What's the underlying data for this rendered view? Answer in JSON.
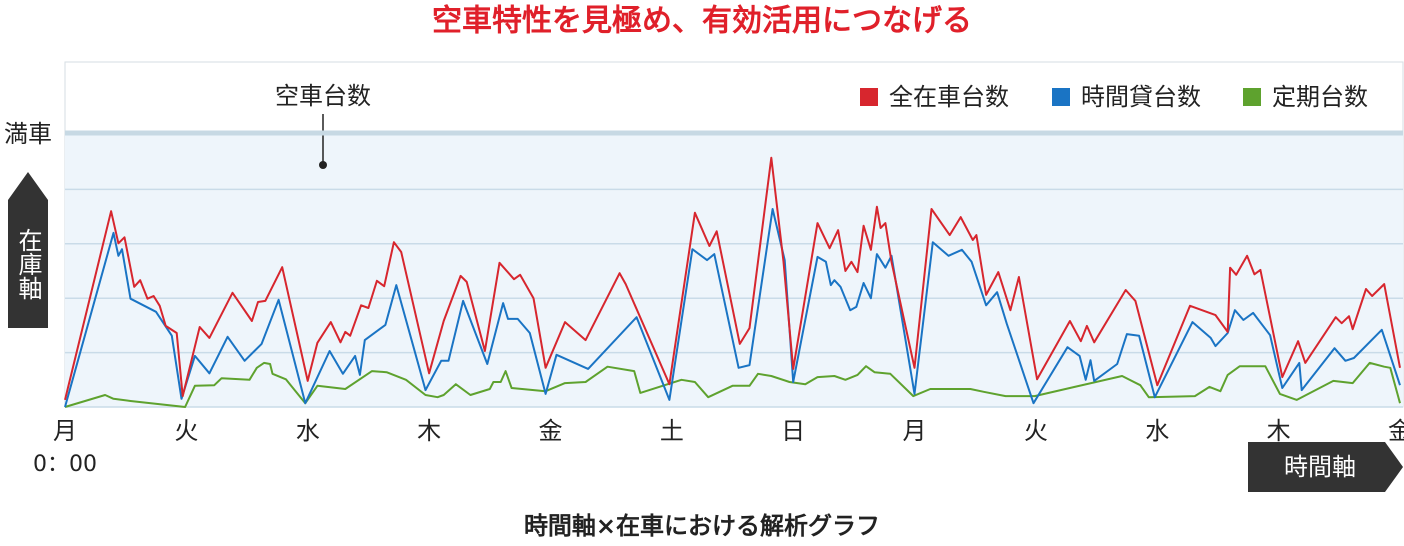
{
  "chart_data": {
    "type": "line",
    "title": "空車特性を見極め、有効活用につなげる",
    "caption": "時間軸×在車における解析グラフ",
    "annotation": "空車台数",
    "y_axis_label": "在庫軸",
    "x_axis_label": "時間軸",
    "x_start_label": "0：00",
    "full_line": {
      "value": 5,
      "label": "満車"
    },
    "xlim": [
      0,
      11
    ],
    "ylim": [
      0,
      5
    ],
    "xticks": [
      {
        "value": 0,
        "label": "月"
      },
      {
        "value": 1,
        "label": "火"
      },
      {
        "value": 2,
        "label": "水"
      },
      {
        "value": 3,
        "label": "木"
      },
      {
        "value": 4,
        "label": "金"
      },
      {
        "value": 5,
        "label": "土"
      },
      {
        "value": 6,
        "label": "日"
      },
      {
        "value": 7,
        "label": "月"
      },
      {
        "value": 8,
        "label": "火"
      },
      {
        "value": 9,
        "label": "水"
      },
      {
        "value": 10,
        "label": "木"
      },
      {
        "value": 11,
        "label": "金"
      }
    ],
    "gridlines": [
      1,
      2,
      3,
      4
    ],
    "grid": true,
    "legend": "top-right",
    "series": [
      {
        "name": "全在車台数",
        "color": "#d7262e",
        "x": [
          0,
          0.38,
          0.44,
          0.49,
          0.57,
          0.62,
          0.68,
          0.73,
          0.78,
          0.83,
          0.92,
          0.97,
          1.11,
          1.19,
          1.38,
          1.54,
          1.59,
          1.65,
          1.79,
          2.0,
          2.08,
          2.19,
          2.27,
          2.31,
          2.35,
          2.44,
          2.5,
          2.57,
          2.63,
          2.71,
          2.77,
          3.0,
          3.12,
          3.26,
          3.31,
          3.46,
          3.58,
          3.7,
          3.75,
          3.86,
          3.96,
          4.12,
          4.29,
          4.57,
          4.62,
          4.98,
          5.19,
          5.31,
          5.37,
          5.56,
          5.64,
          5.82,
          5.92,
          6.0,
          6.2,
          6.3,
          6.37,
          6.43,
          6.48,
          6.53,
          6.58,
          6.64,
          6.69,
          6.72,
          6.76,
          6.81,
          7.0,
          7.14,
          7.29,
          7.38,
          7.48,
          7.51,
          7.59,
          7.69,
          7.79,
          7.86,
          8.01,
          8.28,
          8.37,
          8.42,
          8.48,
          8.74,
          8.82,
          9.0,
          9.27,
          9.48,
          9.58,
          9.6,
          9.65,
          9.74,
          9.8,
          9.85,
          10.03,
          10.16,
          10.22,
          10.47,
          10.52,
          10.58,
          10.61,
          10.72,
          10.77,
          10.87,
          11.0
        ],
        "values": [
          0.13,
          3.6,
          3.01,
          3.12,
          2.21,
          2.33,
          1.99,
          2.04,
          1.86,
          1.49,
          1.36,
          0.2,
          1.47,
          1.27,
          2.1,
          1.58,
          1.93,
          1.95,
          2.57,
          0.48,
          1.18,
          1.56,
          1.19,
          1.38,
          1.31,
          1.87,
          1.82,
          2.32,
          2.22,
          3.03,
          2.85,
          0.62,
          1.58,
          2.41,
          2.3,
          1.03,
          2.65,
          2.35,
          2.43,
          2.0,
          0.72,
          1.56,
          1.23,
          2.46,
          2.26,
          0.42,
          3.57,
          2.96,
          3.23,
          1.16,
          1.45,
          4.58,
          2.67,
          0.7,
          3.38,
          2.92,
          3.25,
          2.5,
          2.67,
          2.48,
          3.33,
          2.89,
          3.68,
          3.29,
          3.38,
          2.67,
          0.72,
          3.64,
          3.16,
          3.49,
          3.07,
          3.16,
          2.06,
          2.48,
          1.78,
          2.39,
          0.51,
          1.58,
          1.21,
          1.49,
          1.19,
          2.15,
          1.95,
          0.4,
          1.86,
          1.69,
          1.38,
          2.56,
          2.43,
          2.78,
          2.44,
          2.52,
          0.55,
          1.21,
          0.81,
          1.65,
          1.54,
          1.67,
          1.43,
          2.17,
          2.04,
          2.26,
          0.72
        ]
      },
      {
        "name": "時間貸台数",
        "color": "#1a74c4",
        "x": [
          0,
          0.4,
          0.44,
          0.47,
          0.54,
          0.75,
          0.88,
          0.96,
          1.07,
          1.19,
          1.34,
          1.48,
          1.62,
          1.76,
          1.98,
          2.18,
          2.29,
          2.39,
          2.43,
          2.47,
          2.64,
          2.73,
          2.97,
          3.1,
          3.16,
          3.28,
          3.48,
          3.61,
          3.65,
          3.73,
          3.83,
          3.96,
          4.05,
          4.31,
          4.71,
          4.98,
          5.17,
          5.29,
          5.35,
          5.55,
          5.64,
          5.83,
          5.93,
          6.0,
          6.2,
          6.27,
          6.31,
          6.34,
          6.39,
          6.47,
          6.52,
          6.58,
          6.64,
          6.69,
          6.76,
          6.81,
          7.0,
          7.15,
          7.28,
          7.39,
          7.47,
          7.59,
          7.68,
          7.76,
          7.98,
          8.26,
          8.36,
          8.41,
          8.45,
          8.48,
          8.67,
          8.75,
          8.85,
          8.98,
          9.29,
          9.44,
          9.48,
          9.58,
          9.64,
          9.71,
          9.79,
          9.93,
          10.03,
          10.17,
          10.19,
          10.46,
          10.55,
          10.62,
          10.85,
          11.0
        ],
        "values": [
          0,
          3.2,
          2.78,
          2.9,
          1.99,
          1.75,
          1.31,
          0.15,
          0.94,
          0.62,
          1.29,
          0.85,
          1.16,
          1.97,
          0.07,
          1.03,
          0.61,
          0.94,
          0.59,
          1.23,
          1.51,
          2.24,
          0.31,
          0.85,
          0.85,
          1.95,
          0.79,
          1.91,
          1.62,
          1.62,
          1.36,
          0.24,
          0.96,
          0.7,
          1.65,
          0.13,
          2.9,
          2.7,
          2.81,
          0.72,
          0.77,
          3.64,
          2.7,
          0.46,
          2.76,
          2.67,
          2.24,
          2.33,
          2.21,
          1.78,
          1.84,
          2.28,
          2.0,
          2.81,
          2.56,
          2.78,
          0.24,
          3.03,
          2.78,
          2.89,
          2.67,
          1.87,
          2.11,
          1.53,
          0.07,
          1.1,
          0.94,
          0.5,
          0.86,
          0.48,
          0.79,
          1.34,
          1.31,
          0.18,
          1.56,
          1.27,
          1.12,
          1.36,
          1.78,
          1.6,
          1.73,
          1.32,
          0.35,
          0.81,
          0.31,
          1.08,
          0.85,
          0.9,
          1.42,
          0.4
        ]
      },
      {
        "name": "定期台数",
        "color": "#5ea22e",
        "x": [
          0,
          0.33,
          0.4,
          0.54,
          0.99,
          1.07,
          1.23,
          1.29,
          1.52,
          1.58,
          1.64,
          1.69,
          1.71,
          1.82,
          1.98,
          2.08,
          2.31,
          2.53,
          2.65,
          2.81,
          2.97,
          3.07,
          3.12,
          3.22,
          3.34,
          3.5,
          3.53,
          3.59,
          3.63,
          3.68,
          3.96,
          4.12,
          4.29,
          4.47,
          4.69,
          4.74,
          5.08,
          5.19,
          5.3,
          5.5,
          5.64,
          5.71,
          5.82,
          5.97,
          6.1,
          6.2,
          6.34,
          6.43,
          6.53,
          6.6,
          6.67,
          6.8,
          6.99,
          7.13,
          7.46,
          7.57,
          7.75,
          7.99,
          8.32,
          8.71,
          8.86,
          8.93,
          9.31,
          9.43,
          9.52,
          9.58,
          9.68,
          9.89,
          10.01,
          10.15,
          10.45,
          10.61,
          10.75,
          10.87,
          10.92,
          11.0
        ],
        "values": [
          0,
          0.22,
          0.15,
          0.11,
          0,
          0.39,
          0.4,
          0.53,
          0.5,
          0.72,
          0.81,
          0.79,
          0.61,
          0.51,
          0.07,
          0.39,
          0.33,
          0.66,
          0.64,
          0.5,
          0.22,
          0.18,
          0.22,
          0.42,
          0.22,
          0.33,
          0.46,
          0.46,
          0.66,
          0.35,
          0.29,
          0.44,
          0.46,
          0.74,
          0.66,
          0.26,
          0.5,
          0.46,
          0.18,
          0.39,
          0.39,
          0.61,
          0.57,
          0.46,
          0.42,
          0.55,
          0.57,
          0.5,
          0.59,
          0.75,
          0.64,
          0.61,
          0.2,
          0.33,
          0.33,
          0.28,
          0.2,
          0.2,
          0.37,
          0.57,
          0.4,
          0.18,
          0.2,
          0.37,
          0.29,
          0.59,
          0.75,
          0.75,
          0.24,
          0.13,
          0.48,
          0.44,
          0.81,
          0.74,
          0.72,
          0.07
        ]
      }
    ]
  }
}
